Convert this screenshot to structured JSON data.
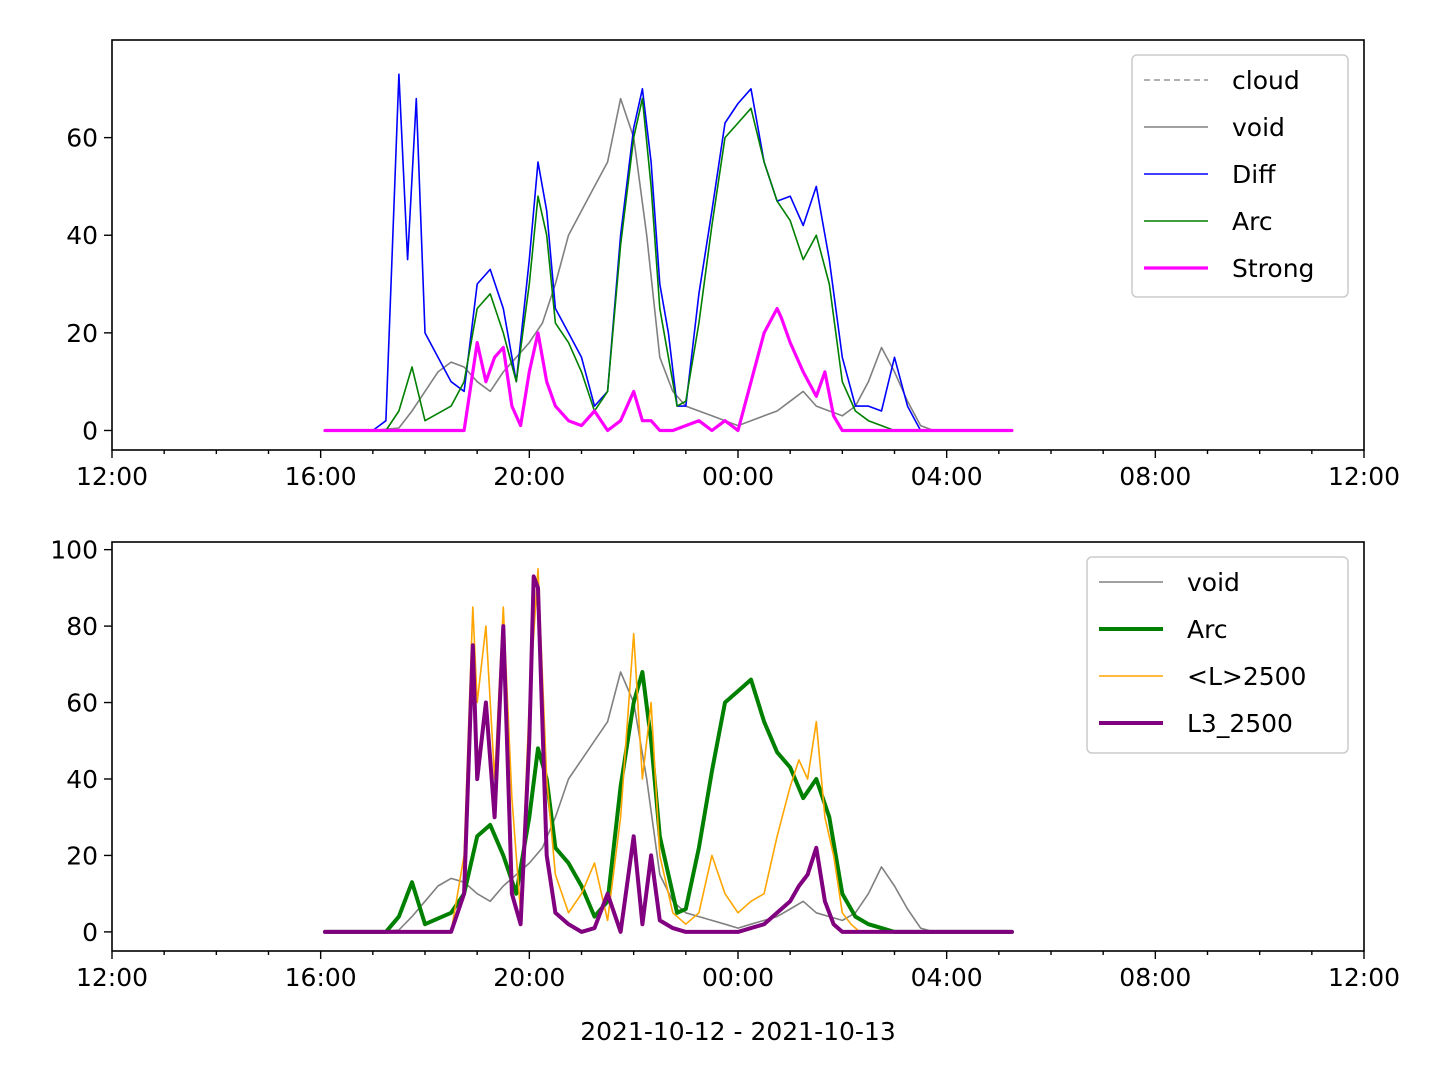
{
  "figure": {
    "xlabel": "2021-10-12 - 2021-10-13"
  },
  "chart_data": [
    {
      "type": "line",
      "x_unit": "time (HH:MM)",
      "xlim": [
        "2021-10-12 12:00",
        "2021-10-13 12:00"
      ],
      "ylim": [
        -4,
        80
      ],
      "x_ticks": [
        "12:00",
        "16:00",
        "20:00",
        "00:00",
        "04:00",
        "08:00",
        "12:00"
      ],
      "y_ticks": [
        0,
        20,
        40,
        60
      ],
      "grid": false,
      "legend": "upper-right",
      "legend_entries": [
        "cloud",
        "void",
        "Diff",
        "Arc",
        "Strong"
      ],
      "series": [
        {
          "name": "cloud",
          "color": "#808080",
          "style": "dashed",
          "width": 1.2,
          "x": [],
          "y": []
        },
        {
          "name": "void",
          "color": "#808080",
          "style": "solid",
          "width": 1.6,
          "x": [
            "16:05",
            "17:00",
            "17:30",
            "17:45",
            "18:00",
            "18:15",
            "18:30",
            "18:45",
            "19:00",
            "19:15",
            "19:30",
            "19:45",
            "20:00",
            "20:15",
            "20:30",
            "20:45",
            "21:00",
            "21:15",
            "21:30",
            "21:45",
            "22:00",
            "22:15",
            "22:30",
            "22:45",
            "23:00",
            "23:15",
            "23:30",
            "23:45",
            "00:00",
            "00:15",
            "00:30",
            "00:45",
            "01:00",
            "01:15",
            "01:30",
            "01:45",
            "02:00",
            "02:15",
            "02:30",
            "02:45",
            "03:00",
            "03:15",
            "03:30",
            "03:45",
            "04:00",
            "05:15"
          ],
          "y": [
            0,
            0,
            0.5,
            4,
            8,
            12,
            14,
            13,
            10,
            8,
            12,
            15,
            18,
            22,
            30,
            40,
            45,
            50,
            55,
            68,
            60,
            40,
            15,
            8,
            5,
            4,
            3,
            2,
            1,
            2,
            3,
            4,
            6,
            8,
            5,
            4,
            3,
            5,
            10,
            17,
            12,
            6,
            1,
            0,
            0,
            0
          ]
        },
        {
          "name": "Diff",
          "color": "#0000ff",
          "style": "solid",
          "width": 1.6,
          "x": [
            "16:05",
            "17:00",
            "17:15",
            "17:30",
            "17:40",
            "17:50",
            "18:00",
            "18:15",
            "18:30",
            "18:45",
            "19:00",
            "19:15",
            "19:30",
            "19:45",
            "20:00",
            "20:10",
            "20:20",
            "20:30",
            "20:45",
            "21:00",
            "21:15",
            "21:30",
            "21:45",
            "22:00",
            "22:10",
            "22:20",
            "22:30",
            "22:40",
            "22:50",
            "23:00",
            "23:15",
            "23:30",
            "23:45",
            "00:00",
            "00:15",
            "00:30",
            "00:45",
            "01:00",
            "01:15",
            "01:30",
            "01:45",
            "02:00",
            "02:15",
            "02:30",
            "02:45",
            "03:00",
            "03:15",
            "03:30",
            "05:15"
          ],
          "y": [
            0,
            0,
            2,
            73,
            35,
            68,
            20,
            15,
            10,
            8,
            30,
            33,
            25,
            10,
            35,
            55,
            45,
            25,
            20,
            15,
            5,
            8,
            40,
            62,
            70,
            55,
            30,
            20,
            5,
            5,
            28,
            45,
            63,
            67,
            70,
            55,
            47,
            48,
            42,
            50,
            35,
            15,
            5,
            5,
            4,
            15,
            5,
            0,
            0
          ]
        },
        {
          "name": "Arc",
          "color": "#008000",
          "style": "solid",
          "width": 1.6,
          "x": [
            "16:05",
            "17:15",
            "17:30",
            "17:45",
            "18:00",
            "18:30",
            "18:45",
            "19:00",
            "19:15",
            "19:30",
            "19:45",
            "20:00",
            "20:10",
            "20:20",
            "20:30",
            "20:45",
            "21:00",
            "21:15",
            "21:30",
            "21:45",
            "22:00",
            "22:10",
            "22:20",
            "22:30",
            "22:40",
            "22:50",
            "23:00",
            "23:15",
            "23:30",
            "23:45",
            "00:00",
            "00:15",
            "00:30",
            "00:45",
            "01:00",
            "01:15",
            "01:30",
            "01:45",
            "02:00",
            "02:15",
            "02:30",
            "02:45",
            "03:00",
            "05:15"
          ],
          "y": [
            0,
            0,
            4,
            13,
            2,
            5,
            10,
            25,
            28,
            20,
            10,
            30,
            48,
            40,
            22,
            18,
            12,
            4,
            8,
            38,
            60,
            68,
            50,
            25,
            15,
            5,
            6,
            22,
            42,
            60,
            63,
            66,
            55,
            47,
            43,
            35,
            40,
            30,
            10,
            4,
            2,
            1,
            0,
            0
          ]
        },
        {
          "name": "Strong",
          "color": "#ff00ff",
          "style": "solid",
          "width": 3.2,
          "x": [
            "16:05",
            "18:45",
            "19:00",
            "19:10",
            "19:20",
            "19:30",
            "19:40",
            "19:50",
            "20:00",
            "20:10",
            "20:20",
            "20:30",
            "20:45",
            "21:00",
            "21:15",
            "21:30",
            "21:45",
            "22:00",
            "22:10",
            "22:20",
            "22:30",
            "22:45",
            "23:00",
            "23:15",
            "23:30",
            "23:45",
            "00:00",
            "00:30",
            "00:45",
            "00:50",
            "01:00",
            "01:15",
            "01:30",
            "01:40",
            "01:50",
            "02:00",
            "05:15"
          ],
          "y": [
            0,
            0,
            18,
            10,
            15,
            17,
            5,
            1,
            12,
            20,
            10,
            5,
            2,
            1,
            4,
            0,
            2,
            8,
            2,
            2,
            0,
            0,
            1,
            2,
            0,
            2,
            0,
            20,
            25,
            23,
            18,
            12,
            7,
            12,
            3,
            0,
            0
          ]
        }
      ]
    },
    {
      "type": "line",
      "x_unit": "time (HH:MM)",
      "xlim": [
        "2021-10-12 12:00",
        "2021-10-13 12:00"
      ],
      "ylim": [
        -5,
        102
      ],
      "x_ticks": [
        "12:00",
        "16:00",
        "20:00",
        "00:00",
        "04:00",
        "08:00",
        "12:00"
      ],
      "y_ticks": [
        0,
        20,
        40,
        60,
        80,
        100
      ],
      "grid": false,
      "legend": "upper-right",
      "legend_entries": [
        "void",
        "Arc",
        "<L>2500",
        "L3_2500"
      ],
      "series": [
        {
          "name": "void",
          "color": "#808080",
          "style": "solid",
          "width": 1.6,
          "x": [
            "16:05",
            "17:00",
            "17:30",
            "17:45",
            "18:00",
            "18:15",
            "18:30",
            "18:45",
            "19:00",
            "19:15",
            "19:30",
            "19:45",
            "20:00",
            "20:15",
            "20:30",
            "20:45",
            "21:00",
            "21:15",
            "21:30",
            "21:45",
            "22:00",
            "22:15",
            "22:30",
            "22:45",
            "23:00",
            "23:15",
            "23:30",
            "23:45",
            "00:00",
            "00:15",
            "00:30",
            "00:45",
            "01:00",
            "01:15",
            "01:30",
            "01:45",
            "02:00",
            "02:15",
            "02:30",
            "02:45",
            "03:00",
            "03:15",
            "03:30",
            "03:45",
            "04:00",
            "05:15"
          ],
          "y": [
            0,
            0,
            0.5,
            4,
            8,
            12,
            14,
            13,
            10,
            8,
            12,
            15,
            18,
            22,
            30,
            40,
            45,
            50,
            55,
            68,
            60,
            40,
            15,
            8,
            5,
            4,
            3,
            2,
            1,
            2,
            3,
            4,
            6,
            8,
            5,
            4,
            3,
            5,
            10,
            17,
            12,
            6,
            1,
            0,
            0,
            0
          ]
        },
        {
          "name": "Arc",
          "color": "#008000",
          "style": "solid",
          "width": 4,
          "x": [
            "16:05",
            "17:15",
            "17:30",
            "17:45",
            "18:00",
            "18:30",
            "18:45",
            "19:00",
            "19:15",
            "19:30",
            "19:45",
            "20:00",
            "20:10",
            "20:20",
            "20:30",
            "20:45",
            "21:00",
            "21:15",
            "21:30",
            "21:45",
            "22:00",
            "22:10",
            "22:20",
            "22:30",
            "22:40",
            "22:50",
            "23:00",
            "23:15",
            "23:30",
            "23:45",
            "00:00",
            "00:15",
            "00:30",
            "00:45",
            "01:00",
            "01:15",
            "01:30",
            "01:45",
            "02:00",
            "02:15",
            "02:30",
            "02:45",
            "03:00",
            "05:15"
          ],
          "y": [
            0,
            0,
            4,
            13,
            2,
            5,
            10,
            25,
            28,
            20,
            10,
            30,
            48,
            40,
            22,
            18,
            12,
            4,
            8,
            38,
            60,
            68,
            50,
            25,
            15,
            5,
            6,
            22,
            42,
            60,
            63,
            66,
            55,
            47,
            43,
            35,
            40,
            30,
            10,
            4,
            2,
            1,
            0,
            0
          ]
        },
        {
          "name": "<L>2500",
          "color": "#ffa500",
          "style": "solid",
          "width": 1.6,
          "x": [
            "16:05",
            "18:30",
            "18:45",
            "18:55",
            "19:00",
            "19:10",
            "19:20",
            "19:30",
            "19:40",
            "19:50",
            "20:00",
            "20:10",
            "20:20",
            "20:30",
            "20:45",
            "21:00",
            "21:15",
            "21:30",
            "21:45",
            "22:00",
            "22:10",
            "22:20",
            "22:30",
            "22:45",
            "23:00",
            "23:15",
            "23:30",
            "23:45",
            "00:00",
            "00:15",
            "00:30",
            "00:45",
            "01:00",
            "01:10",
            "01:20",
            "01:30",
            "01:40",
            "01:50",
            "02:00",
            "02:10",
            "02:20",
            "05:15"
          ],
          "y": [
            0,
            0,
            20,
            85,
            60,
            80,
            40,
            85,
            35,
            5,
            60,
            95,
            40,
            15,
            5,
            10,
            18,
            3,
            30,
            78,
            40,
            60,
            20,
            5,
            2,
            5,
            20,
            10,
            5,
            8,
            10,
            25,
            38,
            45,
            40,
            55,
            30,
            20,
            5,
            2,
            0,
            0
          ]
        },
        {
          "name": "L3_2500",
          "color": "#800080",
          "style": "solid",
          "width": 4,
          "x": [
            "16:05",
            "18:30",
            "18:45",
            "18:55",
            "19:00",
            "19:10",
            "19:20",
            "19:30",
            "19:40",
            "19:50",
            "20:00",
            "20:05",
            "20:10",
            "20:20",
            "20:30",
            "20:45",
            "21:00",
            "21:15",
            "21:30",
            "21:45",
            "22:00",
            "22:10",
            "22:20",
            "22:30",
            "22:45",
            "23:00",
            "23:15",
            "23:30",
            "23:45",
            "00:00",
            "00:15",
            "00:30",
            "00:45",
            "01:00",
            "01:10",
            "01:20",
            "01:30",
            "01:40",
            "01:50",
            "02:00",
            "05:15"
          ],
          "y": [
            0,
            0,
            10,
            75,
            40,
            60,
            30,
            80,
            10,
            2,
            50,
            93,
            90,
            20,
            5,
            2,
            0,
            1,
            10,
            0,
            25,
            2,
            20,
            3,
            1,
            0,
            0,
            0,
            0,
            0,
            1,
            2,
            5,
            8,
            12,
            15,
            22,
            8,
            2,
            0,
            0
          ]
        }
      ]
    }
  ]
}
